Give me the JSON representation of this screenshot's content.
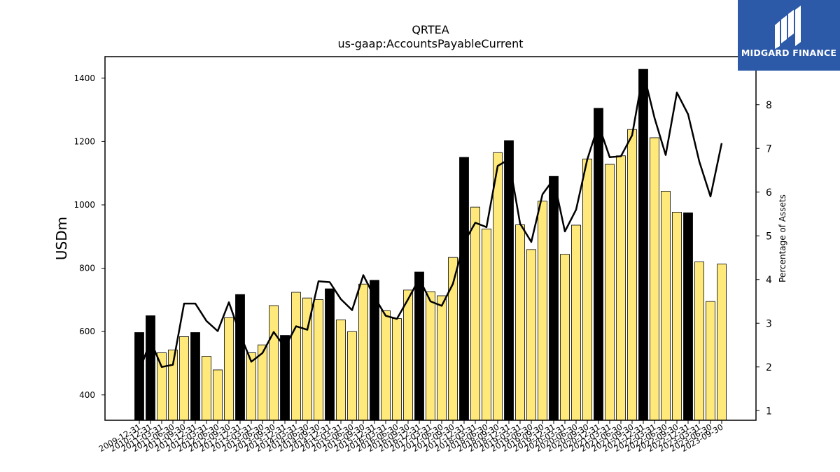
{
  "chart_data": {
    "type": "bar+line",
    "title": "QRTEA",
    "subtitle": "us-gaap:AccountsPayableCurrent",
    "ylabel_left": "USDm",
    "ylabel_right": "Percentage of Assets",
    "ylim_left": [
      320,
      1468
    ],
    "ylim_right": [
      0.78,
      9.1
    ],
    "yticks_left": [
      400,
      600,
      800,
      1000,
      1200,
      1400
    ],
    "yticks_right": [
      1,
      2,
      3,
      4,
      5,
      6,
      7,
      8
    ],
    "colors": {
      "quarter_bar": "#ffe97a",
      "year_end_bar": "#000000",
      "line": "#000000"
    },
    "categories": [
      "2009-12-31",
      "2010-12-31",
      "2011-03-31",
      "2011-06-30",
      "2011-09-30",
      "2011-12-31",
      "2012-03-31",
      "2012-06-30",
      "2012-09-30",
      "2012-12-31",
      "2013-03-31",
      "2013-06-30",
      "2013-09-30",
      "2013-12-31",
      "2014-03-31",
      "2014-06-30",
      "2014-09-30",
      "2014-12-31",
      "2015-03-31",
      "2015-06-30",
      "2015-09-30",
      "2015-12-31",
      "2016-03-31",
      "2016-06-30",
      "2016-09-30",
      "2016-12-31",
      "2017-03-31",
      "2017-06-30",
      "2017-09-30",
      "2017-12-31",
      "2018-03-31",
      "2018-06-30",
      "2018-09-30",
      "2018-12-31",
      "2019-03-31",
      "2019-06-30",
      "2019-09-30",
      "2019-12-31",
      "2020-03-31",
      "2020-06-30",
      "2020-09-30",
      "2020-12-31",
      "2021-03-31",
      "2021-06-30",
      "2021-09-30",
      "2021-12-31",
      "2022-03-31",
      "2022-06-30",
      "2022-09-30",
      "2022-12-31",
      "2023-03-31",
      "2023-06-30",
      "2023-09-30"
    ],
    "series": [
      {
        "values": [
          597,
          650,
          533,
          542,
          584,
          597,
          522,
          479,
          644,
          717,
          533,
          558,
          682,
          588,
          724,
          706,
          701,
          735,
          637,
          600,
          750,
          762,
          666,
          641,
          731,
          788,
          726,
          713,
          834,
          1150,
          993,
          924,
          1165,
          1203,
          937,
          859,
          1012,
          1090,
          844,
          936,
          1145,
          1305,
          1128,
          1155,
          1238,
          1428,
          1212,
          1043,
          977,
          975,
          820,
          695,
          813
        ]
      },
      {
        "values": [
          1.9,
          2.6,
          2.0,
          2.05,
          3.45,
          3.45,
          3.05,
          2.82,
          3.48,
          2.75,
          2.12,
          2.32,
          2.8,
          2.45,
          2.93,
          2.85,
          3.96,
          3.94,
          3.55,
          3.3,
          4.1,
          3.6,
          3.17,
          3.1,
          3.55,
          4.02,
          3.5,
          3.4,
          3.9,
          4.85,
          5.3,
          5.2,
          6.6,
          6.75,
          5.28,
          4.86,
          5.95,
          6.3,
          5.1,
          5.6,
          6.75,
          7.55,
          6.8,
          6.82,
          7.3,
          8.75,
          7.7,
          6.85,
          8.28,
          7.78,
          6.7,
          5.9,
          7.12
        ]
      }
    ]
  },
  "brand": {
    "name": "MIDGARD FINANCE",
    "icon": "midgard-logo-icon"
  }
}
